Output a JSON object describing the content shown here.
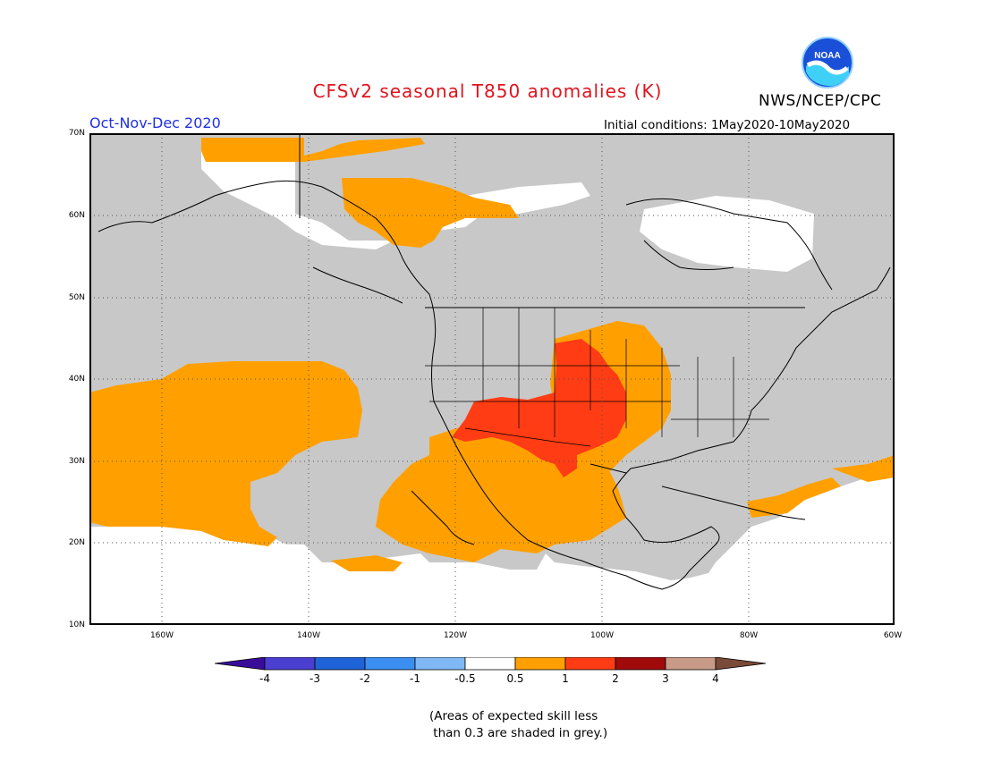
{
  "title": "CFSv2 seasonal T850 anomalies (K)",
  "agency": "NWS/NCEP/CPC",
  "logo_text": "NOAA",
  "period": "Oct-Nov-Dec 2020",
  "initial_conditions": "Initial conditions: 1May2020-10May2020",
  "lat_labels": [
    "70N",
    "60N",
    "50N",
    "40N",
    "30N",
    "20N",
    "10N"
  ],
  "lon_labels": [
    "160W",
    "140W",
    "120W",
    "100W",
    "80W",
    "60W"
  ],
  "colorbar": {
    "ticks": [
      "-4",
      "-3",
      "-2",
      "-1",
      "-0.5",
      "0.5",
      "1",
      "2",
      "3",
      "4"
    ],
    "colors": [
      "#3a0c9a",
      "#4a3fd0",
      "#1f63d8",
      "#3b8ff0",
      "#7fb8f5",
      "#ffffff",
      "#ffa000",
      "#ff3c14",
      "#a00a0a",
      "#c89a88",
      "#7a4a38"
    ]
  },
  "skill_note": "(Areas of expected skill less\n than 0.3 are shaded in grey.)",
  "colors": {
    "low_skill_grey": "#c8c8c8",
    "anomaly_0_5_to_1": "#ffa000",
    "anomaly_1_to_2": "#ff3c14",
    "title_red": "#e0141e",
    "period_blue": "#2030e0"
  }
}
